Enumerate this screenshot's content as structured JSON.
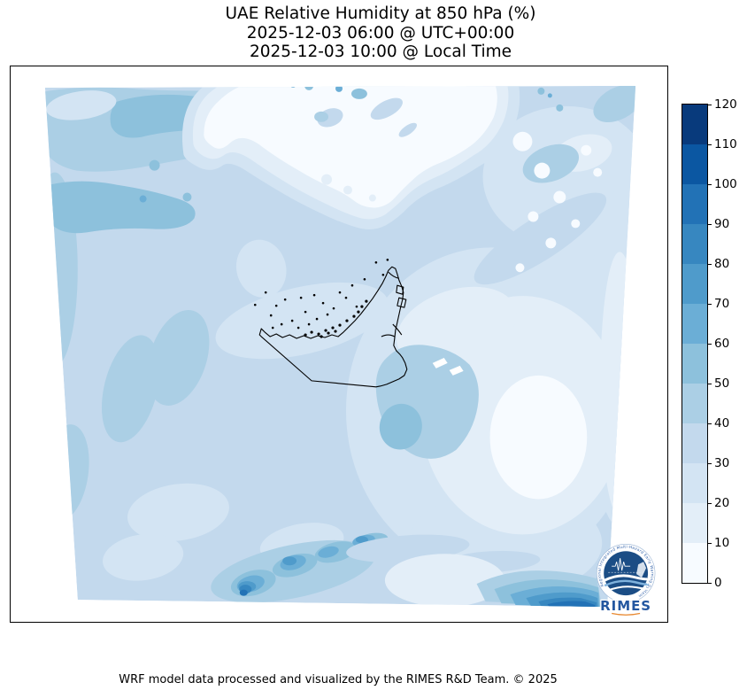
{
  "title": {
    "line1": "UAE Relative Humidity at 850 hPa (%)",
    "line2": "2025-12-03 06:00 @ UTC+00:00",
    "line3": "2025-12-03 10:00 @ Local Time"
  },
  "footer": {
    "credit": "WRF model data processed and visualized by the RIMES R&D Team. © 2025"
  },
  "colorbar": {
    "unit": "%",
    "vmin": 0,
    "vmax": 120,
    "ticks": [
      0,
      10,
      20,
      30,
      40,
      50,
      60,
      70,
      80,
      90,
      100,
      110,
      120
    ],
    "levels": [
      {
        "range": "0-10",
        "color": "#f7fbff"
      },
      {
        "range": "10-20",
        "color": "#e3eef8"
      },
      {
        "range": "20-30",
        "color": "#d3e4f3"
      },
      {
        "range": "30-40",
        "color": "#c3d9ed"
      },
      {
        "range": "40-50",
        "color": "#abcfe5"
      },
      {
        "range": "50-60",
        "color": "#8dc1dc"
      },
      {
        "range": "60-70",
        "color": "#6baed6"
      },
      {
        "range": "70-80",
        "color": "#4f9bcb"
      },
      {
        "range": "80-90",
        "color": "#3787c0"
      },
      {
        "range": "90-100",
        "color": "#2272b6"
      },
      {
        "range": "100-110",
        "color": "#0b57a2"
      },
      {
        "range": "110-120",
        "color": "#083a7c"
      }
    ]
  },
  "logo": {
    "wordmark": "RIMES",
    "ring_text": "Regional Integrated Multi-Hazard Early Warning System"
  },
  "map": {
    "outline": "United Arab Emirates national border and coastline with offshore islands",
    "projection_note": "Skewed quadrilateral WRF model domain over the UAE and surrounding Gulf region"
  },
  "chart_data": {
    "type": "heatmap",
    "subtype": "filled-contour-map",
    "title": "UAE Relative Humidity at 850 hPa (%)",
    "subtitle_utc": "2025-12-03 06:00 @ UTC+00:00",
    "subtitle_local": "2025-12-03 10:00 @ Local Time",
    "variable": "Relative Humidity",
    "units": "%",
    "pressure_level_hPa": 850,
    "colormap": "Blues",
    "contour_levels": [
      0,
      10,
      20,
      30,
      40,
      50,
      60,
      70,
      80,
      90,
      100,
      110,
      120
    ],
    "legend_position": "right vertical colorbar",
    "notable_features": [
      {
        "area": "northwest band (upper Gulf)",
        "rh_percent": "40-60, small cores 60-70"
      },
      {
        "area": "north-central lobe",
        "rh_percent": "0-10 (near-white dry air)"
      },
      {
        "area": "scattered dry patches northeast of domain center",
        "rh_percent": "0-20"
      },
      {
        "area": "central Gulf and UAE coast",
        "rh_percent": "20-40"
      },
      {
        "area": "southeast of UAE (Hajar mountains area)",
        "rh_percent": "40-50"
      },
      {
        "area": "large southeast pale region",
        "rh_percent": "10-20"
      },
      {
        "area": "south-central ridge chain near bottom edge",
        "rh_percent": "50-90, darkest core 90-100"
      },
      {
        "area": "bottom-right corner banded maximum",
        "rh_percent": "50-100"
      },
      {
        "area": "background over most of domain",
        "rh_percent": "30-40"
      }
    ]
  }
}
